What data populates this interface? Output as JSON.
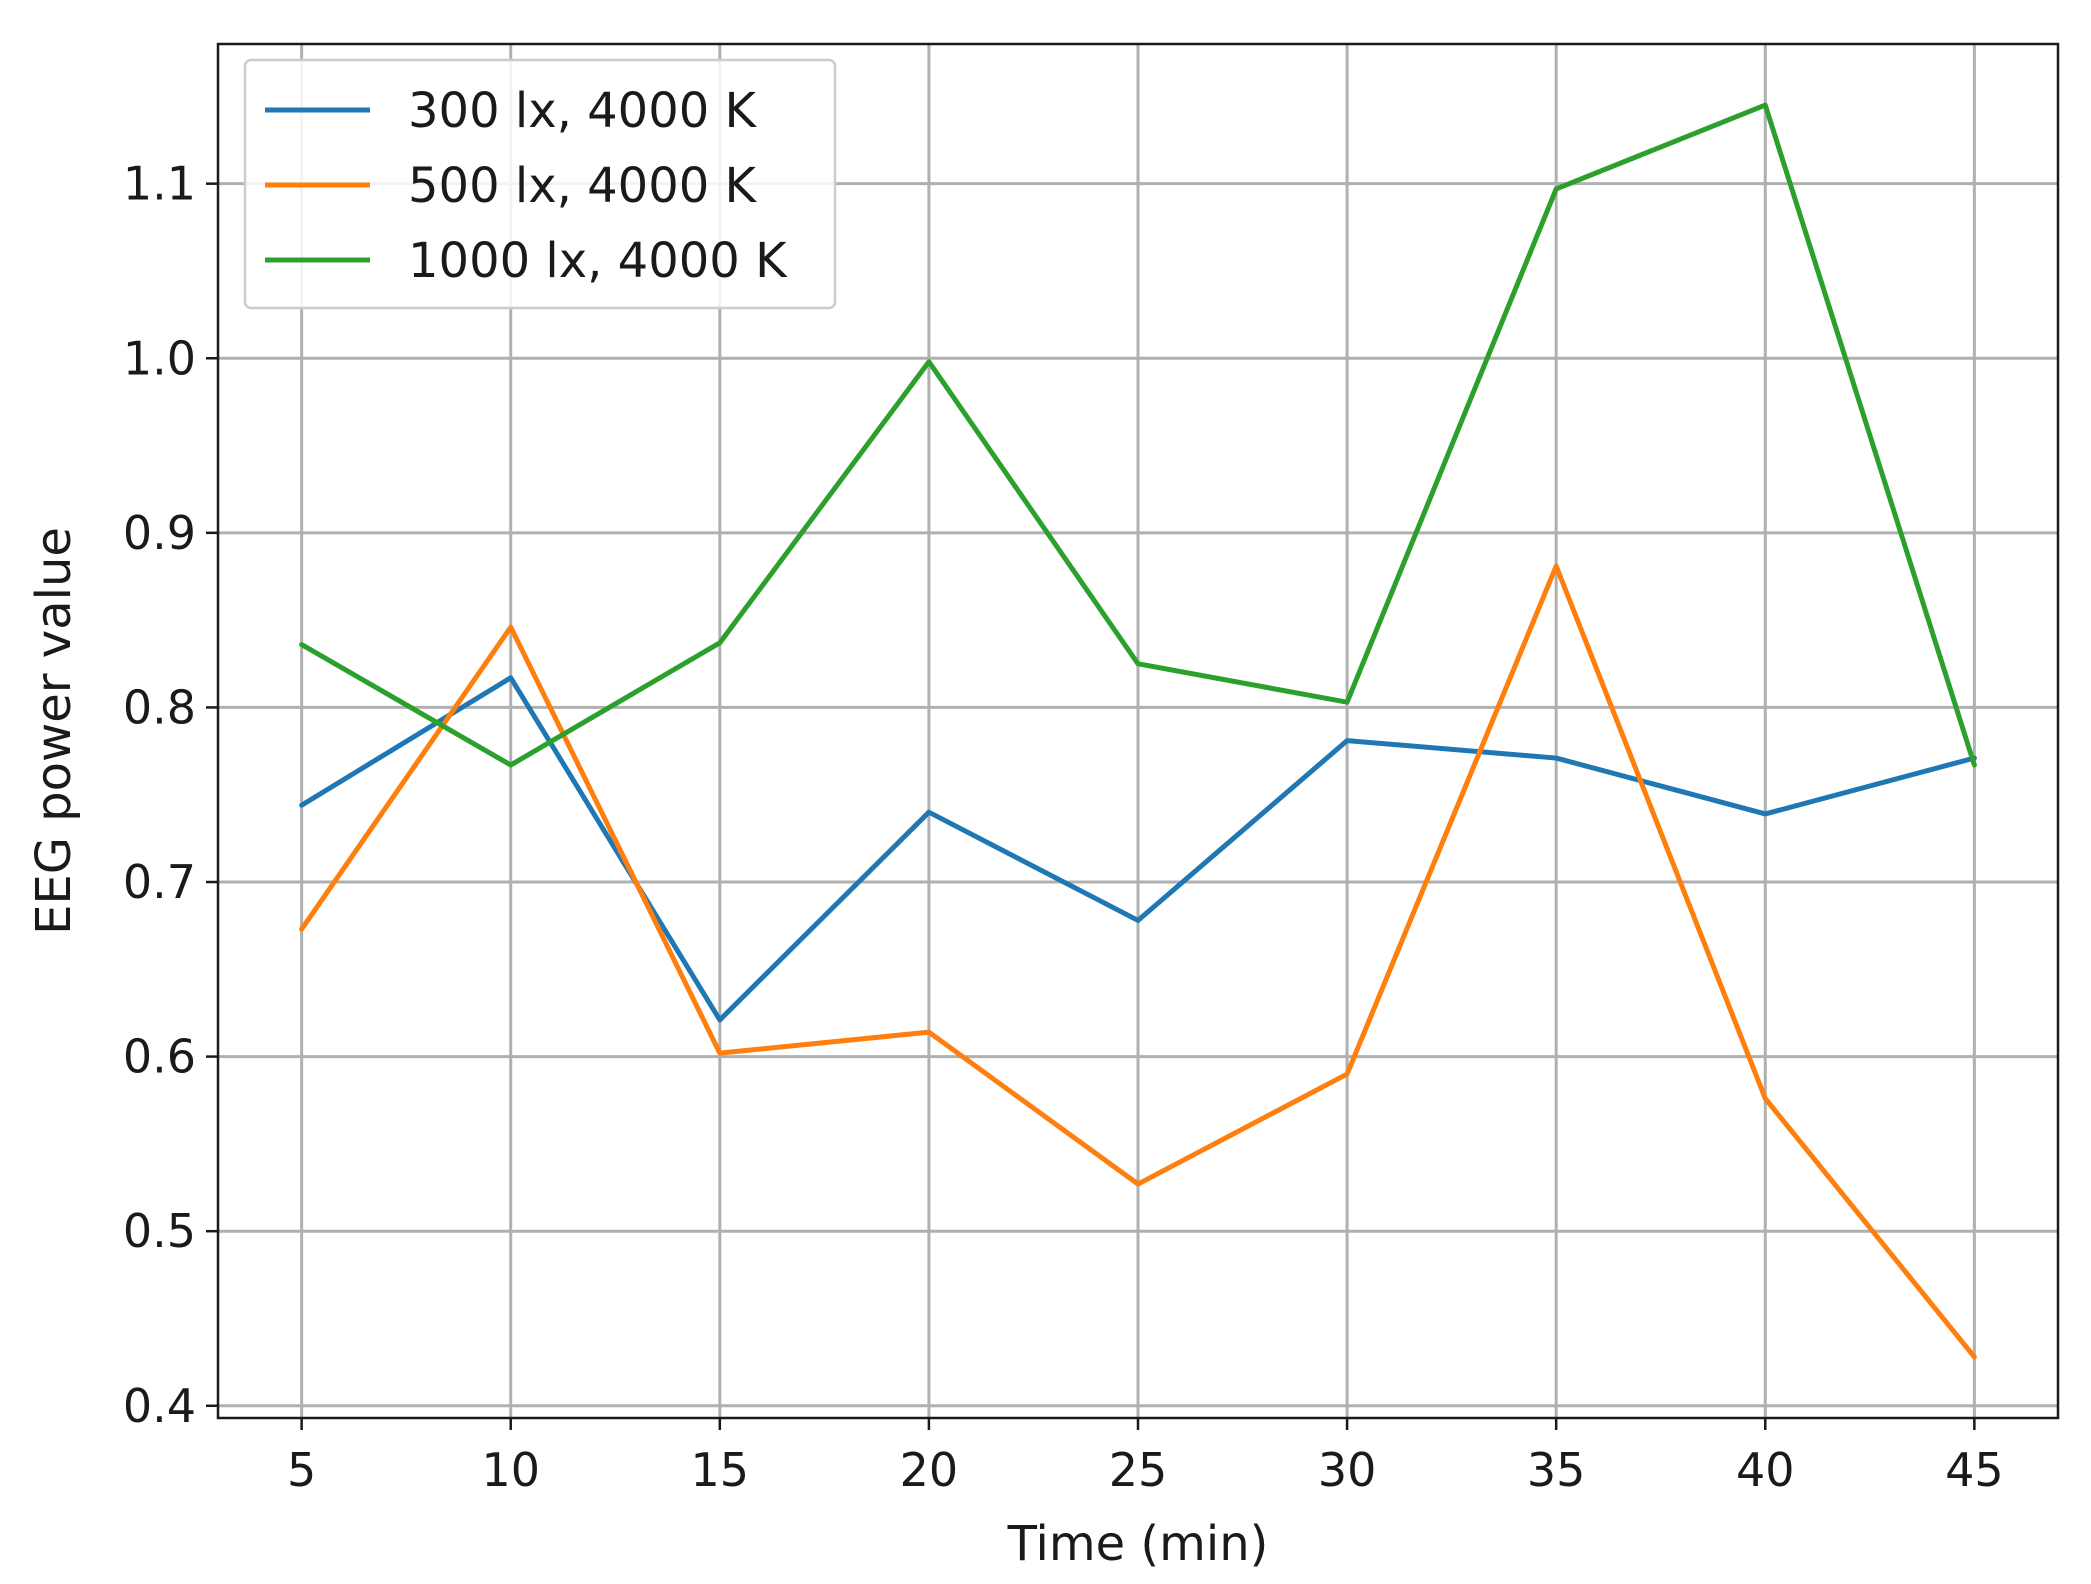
{
  "chart_data": {
    "type": "line",
    "title": "",
    "xlabel": "Time (min)",
    "ylabel": "EEG power value",
    "x": [
      5,
      10,
      15,
      20,
      25,
      30,
      35,
      40,
      45
    ],
    "xticks": [
      "5",
      "10",
      "15",
      "20",
      "25",
      "30",
      "35",
      "40",
      "45"
    ],
    "yticks": [
      "0.4",
      "0.5",
      "0.6",
      "0.7",
      "0.8",
      "0.9",
      "1.0",
      "1.1"
    ],
    "xlim": [
      3,
      47
    ],
    "ylim": [
      0.393,
      1.18
    ],
    "grid": true,
    "legend_position": "top-left",
    "series": [
      {
        "name": "300 lx, 4000 K",
        "color": "#1f77b4",
        "values": [
          0.744,
          0.817,
          0.621,
          0.74,
          0.678,
          0.781,
          0.771,
          0.739,
          0.771
        ]
      },
      {
        "name": "500 lx, 4000 K",
        "color": "#ff7f0e",
        "values": [
          0.673,
          0.846,
          0.602,
          0.614,
          0.527,
          0.59,
          0.881,
          0.576,
          0.428
        ]
      },
      {
        "name": "1000 lx, 4000 K",
        "color": "#2ca02c",
        "values": [
          0.836,
          0.767,
          0.837,
          0.998,
          0.825,
          0.803,
          1.097,
          1.145,
          0.767
        ]
      }
    ]
  }
}
